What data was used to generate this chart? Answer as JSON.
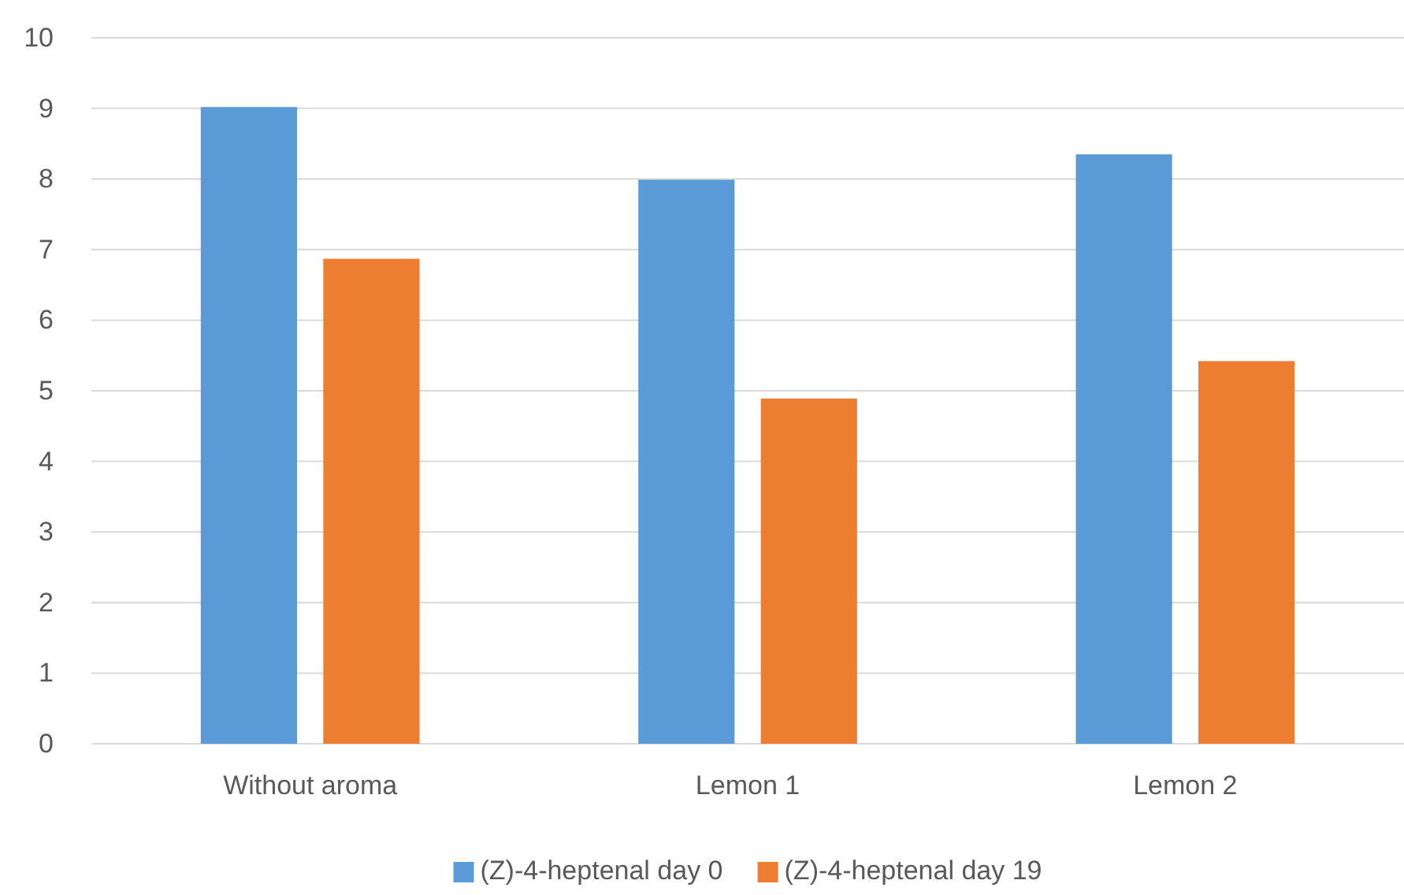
{
  "chart_data": {
    "type": "bar",
    "categories": [
      "Without aroma",
      "Lemon 1",
      "Lemon 2"
    ],
    "series": [
      {
        "name": "(Z)-4-heptenal day 0",
        "color": "#5b9bd5",
        "values": [
          9.02,
          7.99,
          8.35
        ]
      },
      {
        "name": "(Z)-4-heptenal day 19",
        "color": "#ed7d31",
        "values": [
          6.87,
          4.89,
          5.42
        ]
      }
    ],
    "ylim": [
      0,
      10
    ],
    "yticks": [
      0,
      1,
      2,
      3,
      4,
      5,
      6,
      7,
      8,
      9,
      10
    ],
    "grid": "y",
    "legend": "bottom"
  }
}
